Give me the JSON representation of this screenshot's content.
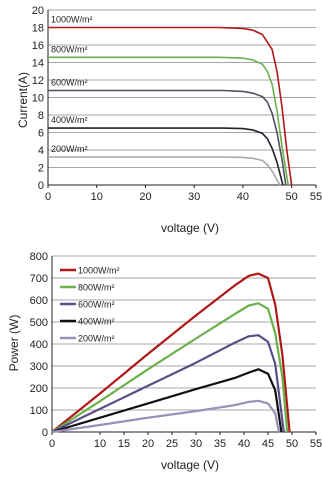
{
  "chart_data": [
    {
      "type": "line",
      "xlabel": "voltage (V)",
      "ylabel": "Current(A)",
      "xlim": [
        0,
        55
      ],
      "ylim": [
        0,
        20
      ],
      "xticks": [
        "0",
        "10",
        "20",
        "30",
        "40",
        "50",
        "55"
      ],
      "xtick_values": [
        0,
        10,
        20,
        30,
        40,
        50,
        55
      ],
      "yticks": [
        "0",
        "2",
        "4",
        "6",
        "8",
        "10",
        "12",
        "14",
        "16",
        "18",
        "20"
      ],
      "grid": "horizontal",
      "series": [
        {
          "name": "1000W/m²",
          "color": "#b01818",
          "x": [
            0,
            35,
            40,
            42,
            44,
            46,
            47,
            48,
            49,
            50
          ],
          "y": [
            18,
            18,
            17.9,
            17.7,
            17.2,
            15.5,
            13,
            9,
            4,
            0
          ]
        },
        {
          "name": "800W/m²",
          "color": "#6ab04c",
          "x": [
            0,
            35,
            40,
            42,
            44,
            45,
            46,
            47,
            48,
            49.3
          ],
          "y": [
            14.6,
            14.6,
            14.5,
            14.3,
            13.8,
            13,
            11.5,
            8.5,
            4.5,
            0
          ]
        },
        {
          "name": "600W/m²",
          "color": "#505060",
          "x": [
            0,
            36,
            40,
            42,
            44,
            45,
            46,
            47,
            48,
            48.8
          ],
          "y": [
            10.8,
            10.8,
            10.7,
            10.5,
            10.1,
            9.5,
            8.2,
            6,
            3,
            0
          ]
        },
        {
          "name": "400W/m²",
          "color": "#22222e",
          "x": [
            0,
            36,
            40,
            42,
            44,
            45,
            46,
            47,
            48.2
          ],
          "y": [
            6.5,
            6.5,
            6.45,
            6.3,
            5.9,
            5.3,
            4.2,
            2.6,
            0
          ]
        },
        {
          "name": "200W/m²",
          "color": "#a8a8b0",
          "x": [
            0,
            36,
            40,
            42,
            44,
            45,
            46,
            47.6
          ],
          "y": [
            3.2,
            3.2,
            3.15,
            3.05,
            2.8,
            2.3,
            1.6,
            0
          ]
        }
      ]
    },
    {
      "type": "line",
      "xlabel": "voltage (V)",
      "ylabel": "Power (W)",
      "xlim": [
        0,
        55
      ],
      "ylim": [
        0,
        800
      ],
      "xticks": [
        "0",
        "10",
        "15",
        "20",
        "25",
        "30",
        "35",
        "40",
        "45",
        "50",
        "55"
      ],
      "xtick_values": [
        0,
        10,
        15,
        20,
        25,
        30,
        35,
        40,
        45,
        50,
        55
      ],
      "yticks": [
        "0",
        "100",
        "200",
        "300",
        "400",
        "500",
        "600",
        "700",
        "800"
      ],
      "grid": "horizontal",
      "series": [
        {
          "name": "1000W/m²",
          "color": "#b01818",
          "x": [
            0,
            10,
            20,
            30,
            38,
            41,
            43,
            45,
            46.5,
            48,
            49.5
          ],
          "y": [
            0,
            175,
            355,
            530,
            665,
            710,
            720,
            700,
            580,
            350,
            0
          ]
        },
        {
          "name": "800W/m²",
          "color": "#6ab04c",
          "x": [
            0,
            10,
            20,
            30,
            38,
            41,
            43,
            45,
            46.5,
            48,
            49
          ],
          "y": [
            0,
            140,
            285,
            425,
            535,
            575,
            585,
            560,
            450,
            250,
            0
          ]
        },
        {
          "name": "600W/m²",
          "color": "#5a4e8a",
          "x": [
            0,
            10,
            20,
            30,
            38,
            41,
            43,
            45,
            46.5,
            48.3
          ],
          "y": [
            0,
            105,
            210,
            315,
            405,
            435,
            440,
            410,
            310,
            0
          ]
        },
        {
          "name": "400W/m²",
          "color": "#111111",
          "x": [
            0,
            10,
            20,
            30,
            38,
            41,
            43,
            45,
            46.5,
            47.8
          ],
          "y": [
            0,
            65,
            130,
            195,
            245,
            270,
            285,
            265,
            190,
            0
          ]
        },
        {
          "name": "200W/m²",
          "color": "#9890b8",
          "x": [
            0,
            10,
            20,
            30,
            38,
            41,
            43,
            45,
            46.5,
            47.3
          ],
          "y": [
            0,
            32,
            65,
            95,
            122,
            137,
            142,
            130,
            85,
            0
          ]
        }
      ]
    }
  ]
}
